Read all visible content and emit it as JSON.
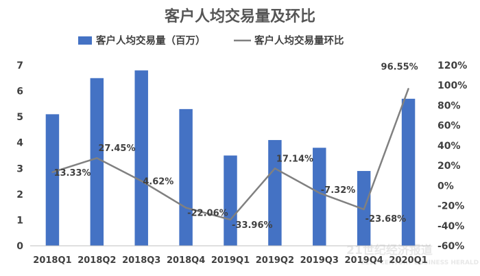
{
  "chart_data": {
    "type": "bar",
    "title": "客户人均交易量及环比",
    "categories": [
      "2018Q1",
      "2018Q2",
      "2018Q3",
      "2018Q4",
      "2019Q1",
      "2019Q2",
      "2019Q3",
      "2019Q4",
      "2020Q1"
    ],
    "series": [
      {
        "name": "客户人均交易量（百万）",
        "type": "bar",
        "axis": "left",
        "color": "#4472c4",
        "values": [
          5.1,
          6.5,
          6.8,
          5.3,
          3.5,
          4.1,
          3.8,
          2.9,
          5.7
        ]
      },
      {
        "name": "客户人均交易量环比",
        "type": "line",
        "axis": "right",
        "color": "#808080",
        "values": [
          13.33,
          27.45,
          4.62,
          -22.06,
          -33.96,
          17.14,
          -7.32,
          -23.68,
          96.55
        ],
        "labels": [
          "13.33%",
          "27.45%",
          "4.62%",
          "-22.06%",
          "-33.96%",
          "17.14%",
          "-7.32%",
          "-23.68%",
          "96.55%"
        ]
      }
    ],
    "y_left": {
      "min": 0,
      "max": 7,
      "ticks": [
        "0",
        "1",
        "2",
        "3",
        "4",
        "5",
        "6",
        "7"
      ]
    },
    "y_right": {
      "min": -60,
      "max": 120,
      "ticks": [
        "-60%",
        "-40%",
        "-20%",
        "0%",
        "20%",
        "40%",
        "60%",
        "80%",
        "100%",
        "120%"
      ]
    },
    "legend": "top",
    "grid": false
  },
  "watermark": {
    "line1": "21世纪经济报道",
    "line2": "21ST CENTURY BUSINESS HERALD"
  }
}
